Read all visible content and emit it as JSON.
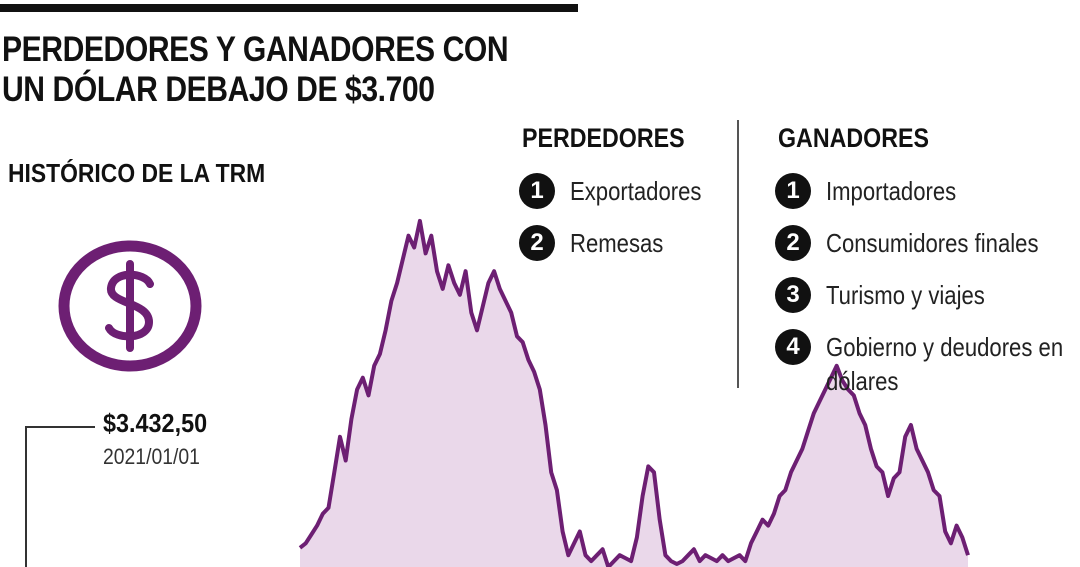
{
  "title": "PERDEDORES Y GANADORES CON UN DÓLAR DEBAJO DE $3.700",
  "subtitle": "HISTÓRICO DE LA TRM",
  "icon": "dollar-circle-icon",
  "accent_color": "#6d1f73",
  "fill_color": "#ead8ea",
  "callout": {
    "value": "$3.432,50",
    "date": "2021/01/01"
  },
  "losers": {
    "heading": "PERDEDORES",
    "items": [
      {
        "num": "1",
        "label": "Exportadores"
      },
      {
        "num": "2",
        "label": "Remesas"
      }
    ]
  },
  "winners": {
    "heading": "GANADORES",
    "items": [
      {
        "num": "1",
        "label": "Importadores"
      },
      {
        "num": "2",
        "label": "Consumidores finales"
      },
      {
        "num": "3",
        "label": "Turismo y viajes"
      },
      {
        "num": "4",
        "label": "Gobierno y deudores en dólares"
      }
    ]
  },
  "chart_data": {
    "type": "area",
    "title": "HISTÓRICO DE LA TRM",
    "xlabel": "",
    "ylabel": "",
    "ylim": [
      3400,
      4000
    ],
    "grid": false,
    "legend": "none",
    "series": [
      {
        "values": [
          3432.5,
          3440,
          3455,
          3470,
          3490,
          3500,
          3560,
          3620,
          3580,
          3650,
          3700,
          3720,
          3690,
          3740,
          3760,
          3800,
          3850,
          3880,
          3920,
          3960,
          3940,
          3985,
          3930,
          3960,
          3900,
          3870,
          3910,
          3880,
          3860,
          3900,
          3830,
          3800,
          3840,
          3880,
          3900,
          3870,
          3850,
          3830,
          3790,
          3780,
          3750,
          3730,
          3700,
          3640,
          3560,
          3530,
          3460,
          3420,
          3440,
          3460,
          3420,
          3410,
          3420,
          3430,
          3400,
          3410,
          3420,
          3415,
          3410,
          3450,
          3520,
          3570,
          3560,
          3480,
          3420,
          3410,
          3405,
          3410,
          3420,
          3430,
          3410,
          3420,
          3415,
          3410,
          3420,
          3410,
          3415,
          3420,
          3410,
          3440,
          3460,
          3480,
          3470,
          3490,
          3520,
          3530,
          3560,
          3580,
          3600,
          3630,
          3660,
          3680,
          3700,
          3720,
          3740,
          3715,
          3700,
          3690,
          3660,
          3640,
          3600,
          3570,
          3560,
          3520,
          3550,
          3560,
          3620,
          3640,
          3600,
          3580,
          3560,
          3530,
          3520,
          3460,
          3440,
          3470,
          3450,
          3420
        ]
      }
    ]
  }
}
